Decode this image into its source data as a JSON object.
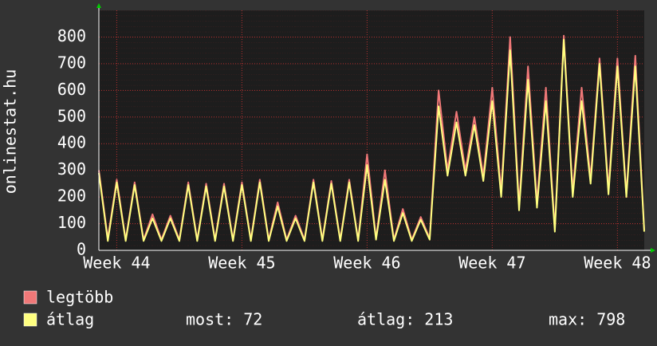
{
  "chart_data": {
    "type": "line",
    "ylabel": "onlinestat.hu",
    "x": [
      -1,
      -0.5,
      0,
      0.5,
      1,
      1.5,
      2,
      2.5,
      3,
      3.5,
      4,
      4.5,
      5,
      5.5,
      6,
      6.5,
      7,
      7.5,
      8,
      8.5,
      9,
      9.5,
      10,
      10.5,
      11,
      11.5,
      12,
      12.5,
      13,
      13.5,
      14,
      14.5,
      15,
      15.5,
      16,
      16.5,
      17,
      17.5,
      18,
      18.5,
      19,
      19.5,
      20,
      20.5,
      21,
      21.5,
      22,
      22.5,
      23,
      23.5,
      24,
      24.5,
      25,
      25.5,
      26,
      26.5,
      27,
      27.5,
      28,
      28.5,
      29,
      29.5
    ],
    "series": [
      {
        "name": "legtöbb",
        "color": "#f07878",
        "values": [
          300,
          45,
          265,
          40,
          255,
          40,
          135,
          40,
          130,
          40,
          255,
          40,
          250,
          40,
          250,
          40,
          255,
          40,
          265,
          40,
          180,
          40,
          130,
          40,
          265,
          40,
          260,
          40,
          265,
          40,
          360,
          45,
          300,
          40,
          155,
          40,
          125,
          45,
          600,
          300,
          520,
          300,
          500,
          280,
          610,
          220,
          800,
          170,
          690,
          180,
          610,
          80,
          805,
          220,
          610,
          270,
          720,
          230,
          720,
          210,
          730,
          75
        ]
      },
      {
        "name": "átlag",
        "color": "#ffff80",
        "values": [
          290,
          35,
          255,
          35,
          245,
          35,
          120,
          35,
          120,
          35,
          245,
          35,
          240,
          35,
          240,
          35,
          245,
          35,
          255,
          35,
          165,
          35,
          120,
          35,
          255,
          35,
          250,
          35,
          255,
          35,
          320,
          40,
          265,
          35,
          140,
          35,
          115,
          40,
          540,
          280,
          480,
          280,
          470,
          260,
          560,
          200,
          750,
          150,
          640,
          160,
          560,
          70,
          790,
          200,
          560,
          250,
          700,
          210,
          690,
          200,
          690,
          70
        ]
      }
    ],
    "xlim": [
      -1,
      29.5
    ],
    "xticks": [
      {
        "value": 0,
        "label": "Week 44"
      },
      {
        "value": 7,
        "label": "Week 45"
      },
      {
        "value": 14,
        "label": "Week 46"
      },
      {
        "value": 21,
        "label": "Week 47"
      },
      {
        "value": 28,
        "label": "Week 48"
      }
    ],
    "ylim": [
      0,
      900
    ],
    "yticks": [
      0,
      100,
      200,
      300,
      400,
      500,
      600,
      700,
      800
    ],
    "grid": true,
    "stats": [
      "most: 72",
      "átlag: 213",
      "max: 798"
    ]
  }
}
